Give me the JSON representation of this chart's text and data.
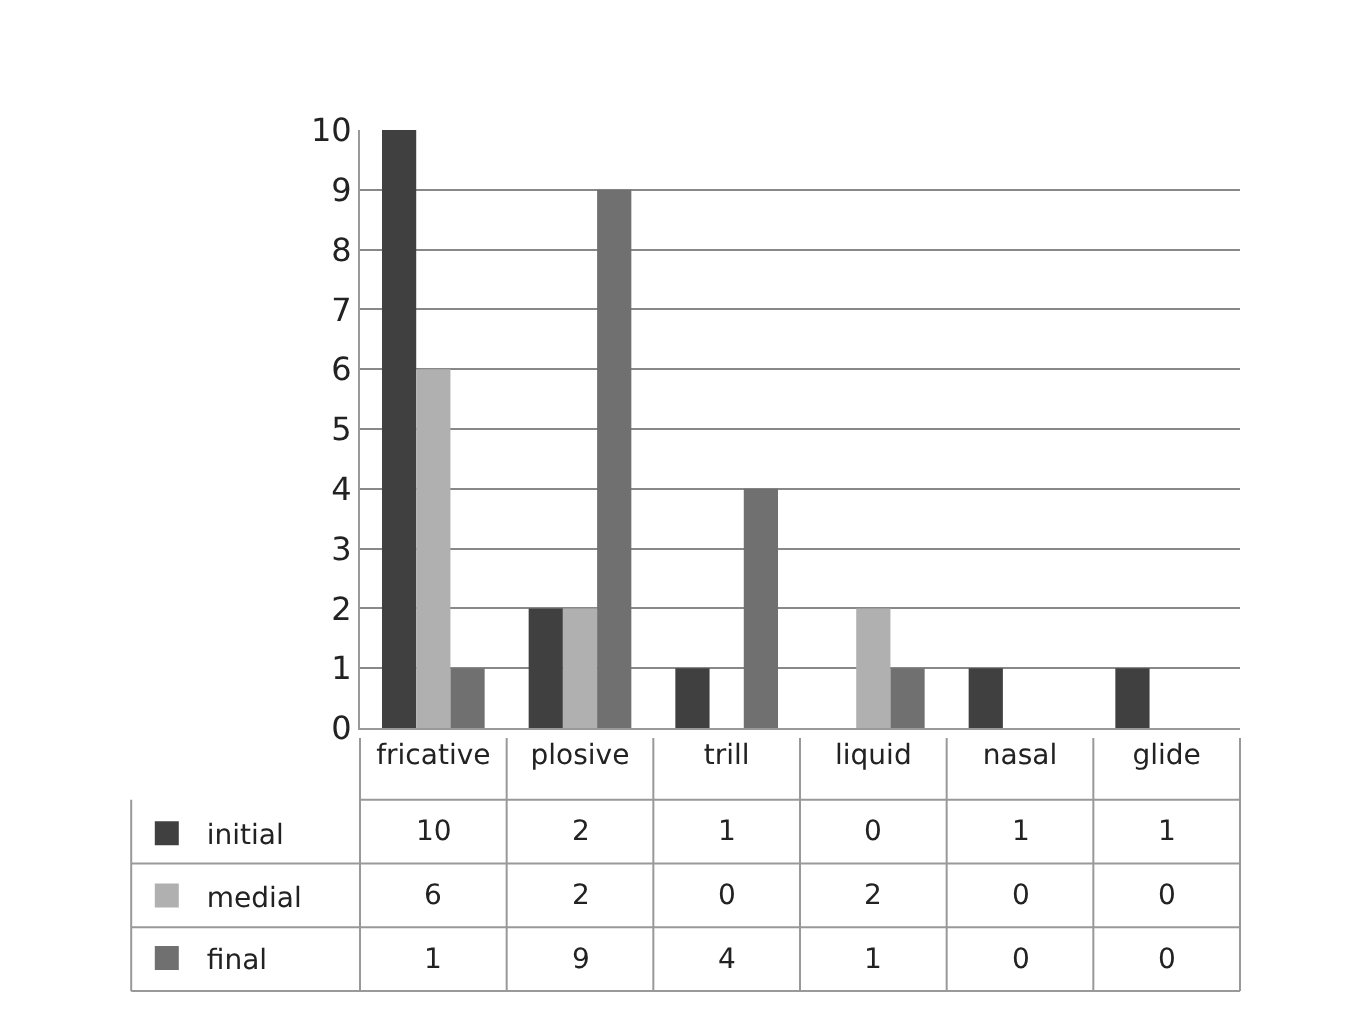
{
  "chart_data": {
    "type": "bar",
    "categories": [
      "fricative",
      "plosive",
      "trill",
      "liquid",
      "nasal",
      "glide"
    ],
    "series": [
      {
        "name": "initial",
        "color": "#404040",
        "values": [
          10,
          2,
          1,
          0,
          1,
          1
        ]
      },
      {
        "name": "medial",
        "color": "#b0b0b0",
        "values": [
          6,
          2,
          0,
          2,
          0,
          0
        ]
      },
      {
        "name": "final",
        "color": "#707070",
        "values": [
          1,
          9,
          4,
          1,
          0,
          0
        ]
      }
    ],
    "ylim": [
      0,
      10
    ],
    "yticks": [
      0,
      1,
      2,
      3,
      4,
      5,
      6,
      7,
      8,
      9,
      10
    ],
    "grid": "y",
    "data_labels": true,
    "legend": "bottom left"
  }
}
